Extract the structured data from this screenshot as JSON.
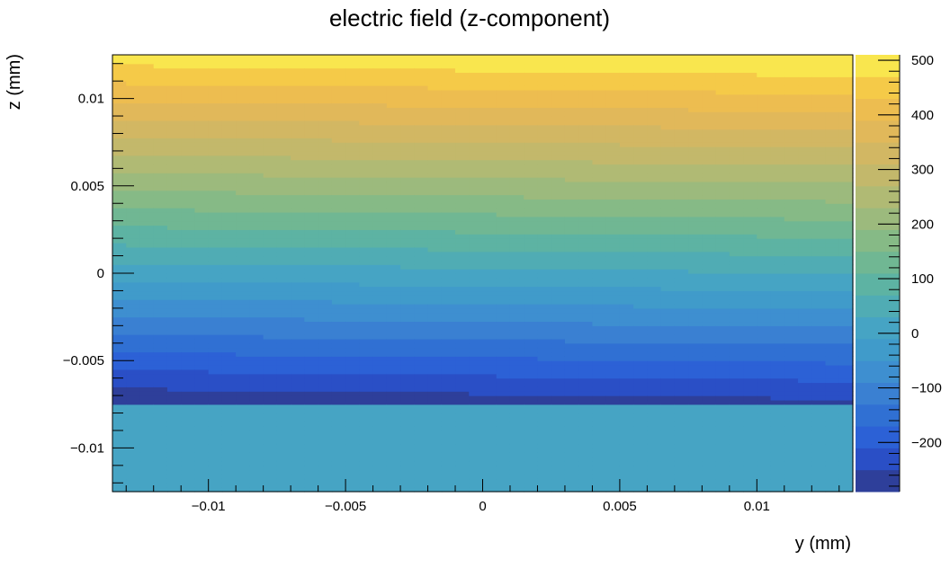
{
  "chart_data": {
    "type": "heatmap",
    "title": "electric field (z-component)",
    "xlabel": "y (mm)",
    "ylabel": "z (mm)",
    "xlim": [
      -0.0135,
      0.0135
    ],
    "ylim": [
      -0.0125,
      0.0125
    ],
    "x_ticks": [
      {
        "value": -0.01,
        "label": "−0.01"
      },
      {
        "value": -0.005,
        "label": "−0.005"
      },
      {
        "value": 0,
        "label": "0"
      },
      {
        "value": 0.005,
        "label": "0.005"
      },
      {
        "value": 0.01,
        "label": "0.01"
      }
    ],
    "y_ticks": [
      {
        "value": -0.01,
        "label": "−0.01"
      },
      {
        "value": -0.005,
        "label": "−0.005"
      },
      {
        "value": 0,
        "label": "0"
      },
      {
        "value": 0.005,
        "label": "0.005"
      },
      {
        "value": 0.01,
        "label": "0.01"
      }
    ],
    "colorbar": {
      "range": [
        -290,
        510
      ],
      "ticks": [
        {
          "value": 500,
          "label": "500"
        },
        {
          "value": 400,
          "label": "400"
        },
        {
          "value": 300,
          "label": "300"
        },
        {
          "value": 200,
          "label": "200"
        },
        {
          "value": 100,
          "label": "100"
        },
        {
          "value": 0,
          "label": "0"
        },
        {
          "value": -100,
          "label": "−100"
        },
        {
          "value": -200,
          "label": "−200"
        }
      ],
      "levels": [
        {
          "from": -290,
          "to": -250,
          "color": "#2e3f9a"
        },
        {
          "from": -250,
          "to": -210,
          "color": "#2a4fc6"
        },
        {
          "from": -210,
          "to": -170,
          "color": "#2c61d6"
        },
        {
          "from": -170,
          "to": -130,
          "color": "#3070d3"
        },
        {
          "from": -130,
          "to": -90,
          "color": "#3a80d2"
        },
        {
          "from": -90,
          "to": -50,
          "color": "#3e8fd0"
        },
        {
          "from": -50,
          "to": -10,
          "color": "#409bca"
        },
        {
          "from": -10,
          "to": 30,
          "color": "#46a4c4"
        },
        {
          "from": 30,
          "to": 70,
          "color": "#50acb4"
        },
        {
          "from": 70,
          "to": 110,
          "color": "#5db3a3"
        },
        {
          "from": 110,
          "to": 150,
          "color": "#70b793"
        },
        {
          "from": 150,
          "to": 190,
          "color": "#86ba86"
        },
        {
          "from": 190,
          "to": 230,
          "color": "#9cba7d"
        },
        {
          "from": 230,
          "to": 270,
          "color": "#b0ba74"
        },
        {
          "from": 270,
          "to": 310,
          "color": "#c3b86b"
        },
        {
          "from": 310,
          "to": 350,
          "color": "#d2b763"
        },
        {
          "from": 350,
          "to": 390,
          "color": "#e1b85a"
        },
        {
          "from": 390,
          "to": 430,
          "color": "#edbd50"
        },
        {
          "from": 430,
          "to": 470,
          "color": "#f5ca48"
        },
        {
          "from": 470,
          "to": 510,
          "color": "#f9e64e"
        }
      ]
    },
    "field": {
      "description_of_values": "z-component of electric field; linear gradient in z above the boundary, constant below",
      "boundary_z": -0.0074,
      "value_below_boundary": 5,
      "value_at_top": 505,
      "value_at_boundary": -270,
      "tilt_per_mm_y": 900
    }
  }
}
